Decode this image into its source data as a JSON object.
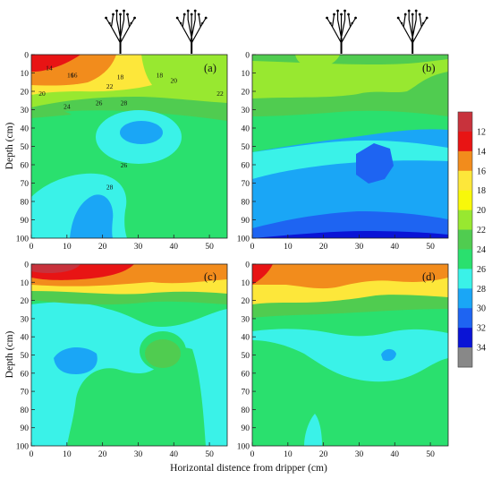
{
  "chart_data": {
    "type": "heatmap",
    "xlabel": "Horizontal distence from dripper (cm)",
    "ylabel": "Depth (cm)",
    "xlim": [
      0,
      55
    ],
    "ylim": [
      0,
      100
    ],
    "x_ticks": [
      "0",
      "10",
      "20",
      "30",
      "40",
      "50"
    ],
    "y_ticks": [
      "0",
      "10",
      "20",
      "30",
      "40",
      "50",
      "60",
      "70",
      "80",
      "90",
      "100"
    ],
    "colorbar": {
      "levels": [
        "12",
        "14",
        "16",
        "18",
        "20",
        "22",
        "24",
        "26",
        "28",
        "30",
        "32",
        "34"
      ],
      "colors": [
        "#c8323c",
        "#e81414",
        "#f28c1c",
        "#fde73a",
        "#f8f80a",
        "#98e830",
        "#50cc50",
        "#2ae06e",
        "#3af2e8",
        "#1aa6f6",
        "#1e64f2",
        "#0a14d6",
        "#888888"
      ]
    },
    "trees": [
      {
        "panel": "a",
        "x": 25
      },
      {
        "panel": "a",
        "x": 45
      },
      {
        "panel": "b",
        "x": 25
      },
      {
        "panel": "b",
        "x": 45
      }
    ],
    "panels": [
      {
        "label": "(a)",
        "labels": [
          {
            "text": "14",
            "x": 5,
            "y": 7
          },
          {
            "text": "16",
            "x": 11,
            "y": 11
          },
          {
            "text": "16",
            "x": 12,
            "y": 11
          },
          {
            "text": "18",
            "x": 25,
            "y": 12
          },
          {
            "text": "18",
            "x": 36,
            "y": 11
          },
          {
            "text": "20",
            "x": 40,
            "y": 14
          },
          {
            "text": "22",
            "x": 22,
            "y": 17
          },
          {
            "text": "20",
            "x": 3,
            "y": 21
          },
          {
            "text": "22",
            "x": 53,
            "y": 21
          },
          {
            "text": "24",
            "x": 10,
            "y": 28
          },
          {
            "text": "26",
            "x": 19,
            "y": 26
          },
          {
            "text": "28",
            "x": 26,
            "y": 26
          },
          {
            "text": "26",
            "x": 26,
            "y": 60
          },
          {
            "text": "28",
            "x": 22,
            "y": 72
          }
        ]
      },
      {
        "label": "(b)",
        "labels": []
      },
      {
        "label": "(c)",
        "labels": []
      },
      {
        "label": "(d)",
        "labels": []
      }
    ]
  }
}
